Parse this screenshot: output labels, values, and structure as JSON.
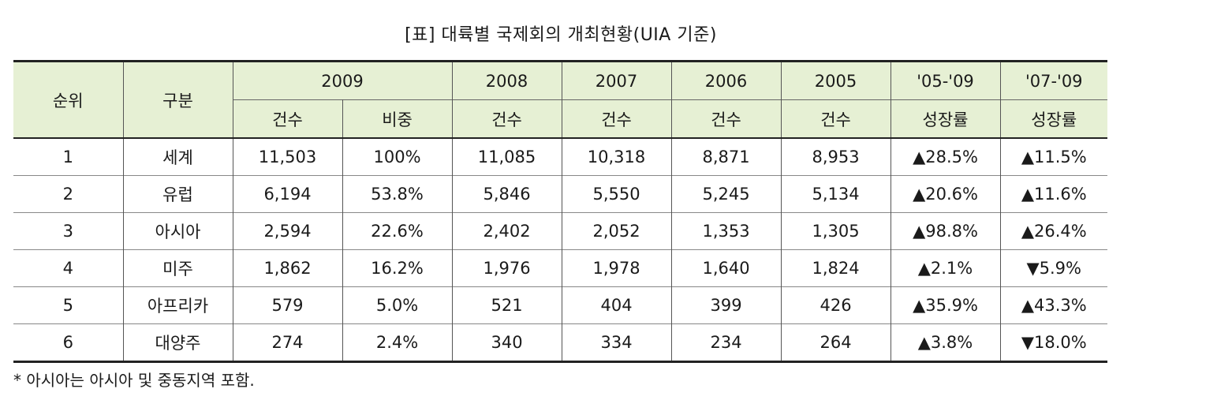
{
  "title": "[표] 대륙별 국제회의 개최현황(UIA 기준)",
  "header": {
    "rank": "순위",
    "category": "구분",
    "years": [
      "2009",
      "2008",
      "2007",
      "2006",
      "2005",
      "'05-'09",
      "'07-'09"
    ],
    "sub": [
      "건수",
      "비중",
      "건수",
      "건수",
      "건수",
      "건수",
      "성장률",
      "성장률"
    ]
  },
  "rows": [
    {
      "rank": "1",
      "name": "세계",
      "c2009": "11,503",
      "share": "100%",
      "c2008": "11,085",
      "c2007": "10,318",
      "c2006": "8,871",
      "c2005": "8,953",
      "g0509": "▲28.5%",
      "g0709": "▲11.5%"
    },
    {
      "rank": "2",
      "name": "유럽",
      "c2009": "6,194",
      "share": "53.8%",
      "c2008": "5,846",
      "c2007": "5,550",
      "c2006": "5,245",
      "c2005": "5,134",
      "g0509": "▲20.6%",
      "g0709": "▲11.6%"
    },
    {
      "rank": "3",
      "name": "아시아",
      "c2009": "2,594",
      "share": "22.6%",
      "c2008": "2,402",
      "c2007": "2,052",
      "c2006": "1,353",
      "c2005": "1,305",
      "g0509": "▲98.8%",
      "g0709": "▲26.4%"
    },
    {
      "rank": "4",
      "name": "미주",
      "c2009": "1,862",
      "share": "16.2%",
      "c2008": "1,976",
      "c2007": "1,978",
      "c2006": "1,640",
      "c2005": "1,824",
      "g0509": "▲2.1%",
      "g0709": "▼5.9%"
    },
    {
      "rank": "5",
      "name": "아프리카",
      "c2009": "579",
      "share": "5.0%",
      "c2008": "521",
      "c2007": "404",
      "c2006": "399",
      "c2005": "426",
      "g0509": "▲35.9%",
      "g0709": "▲43.3%"
    },
    {
      "rank": "6",
      "name": "대양주",
      "c2009": "274",
      "share": "2.4%",
      "c2008": "340",
      "c2007": "334",
      "c2006": "234",
      "c2005": "264",
      "g0509": "▲3.8%",
      "g0709": "▼18.0%"
    }
  ],
  "note": "* 아시아는 아시아 및 중동지역 포함.",
  "colors": {
    "header_bg": "#e6f0d4",
    "border": "#222222"
  }
}
